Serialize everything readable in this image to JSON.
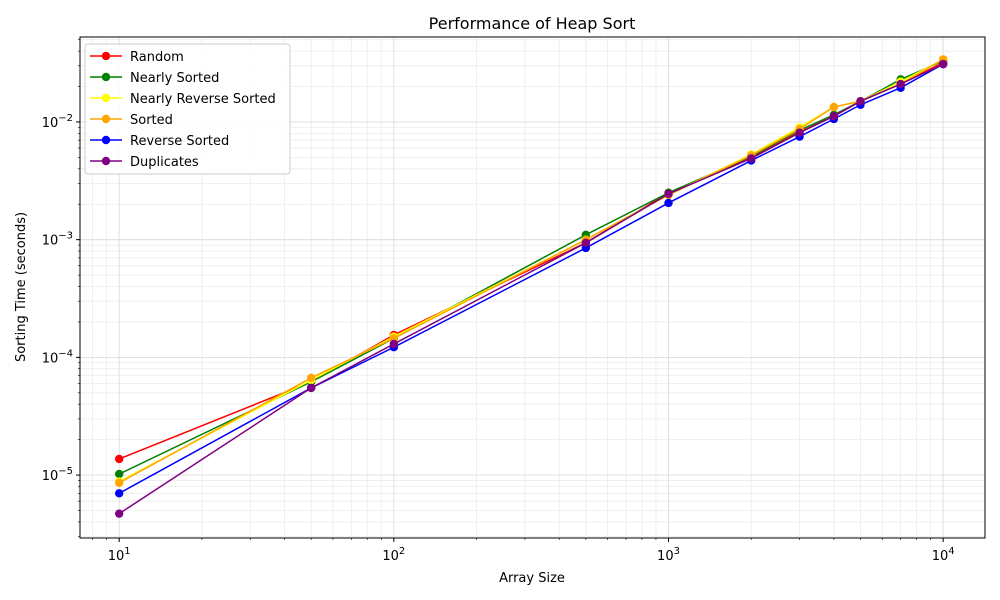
{
  "chart_data": {
    "type": "line",
    "title": "Performance of Heap Sort",
    "x_label": "Array Size",
    "y_label": "Sorting Time (seconds)",
    "x_scale": "log",
    "y_scale": "log",
    "grid": true,
    "legend_position": "upper-left",
    "x": [
      10,
      50,
      100,
      500,
      1000,
      2000,
      3000,
      4000,
      5000,
      7000,
      10000
    ],
    "xlim": [
      7.2,
      14200
    ],
    "ylim": [
      2.92e-06,
      0.0527
    ],
    "xticks": [
      {
        "value": 10,
        "label": "10^1"
      },
      {
        "value": 100,
        "label": "10^2"
      },
      {
        "value": 1000,
        "label": "10^3"
      },
      {
        "value": 10000,
        "label": "10^4"
      }
    ],
    "yticks": [
      {
        "value": 1e-05,
        "label": "10^−5"
      },
      {
        "value": 0.0001,
        "label": "10^−4"
      },
      {
        "value": 0.001,
        "label": "10^−3"
      },
      {
        "value": 0.01,
        "label": "10^−2"
      }
    ],
    "series": [
      {
        "name": "Random",
        "color": "#ff0000",
        "values": [
          1.37e-05,
          6.2e-05,
          0.000155,
          0.00094,
          0.0025,
          0.005,
          0.0082,
          0.0112,
          0.015,
          0.021,
          0.032
        ]
      },
      {
        "name": "Nearly Sorted",
        "color": "#008000",
        "values": [
          1.02e-05,
          6.2e-05,
          0.000145,
          0.0011,
          0.0025,
          0.0051,
          0.0085,
          0.0115,
          0.015,
          0.023,
          0.033
        ]
      },
      {
        "name": "Nearly Reverse Sorted",
        "color": "#ffff00",
        "values": [
          8.8e-06,
          6.4e-05,
          0.00015,
          0.001,
          0.0024,
          0.0053,
          0.009,
          0.0134,
          0.015,
          0.022,
          0.034
        ]
      },
      {
        "name": "Sorted",
        "color": "#ffa500",
        "values": [
          8.6e-06,
          6.7e-05,
          0.000145,
          0.001,
          0.0024,
          0.0052,
          0.0087,
          0.0134,
          0.015,
          0.021,
          0.034
        ]
      },
      {
        "name": "Reverse Sorted",
        "color": "#0000ff",
        "values": [
          7e-06,
          5.5e-05,
          0.000122,
          0.00085,
          0.00205,
          0.0047,
          0.0075,
          0.0106,
          0.014,
          0.0195,
          0.031
        ]
      },
      {
        "name": "Duplicates",
        "color": "#800080",
        "values": [
          4.7e-06,
          5.5e-05,
          0.00013,
          0.00094,
          0.00245,
          0.0049,
          0.0081,
          0.0112,
          0.015,
          0.021,
          0.031
        ]
      }
    ]
  }
}
